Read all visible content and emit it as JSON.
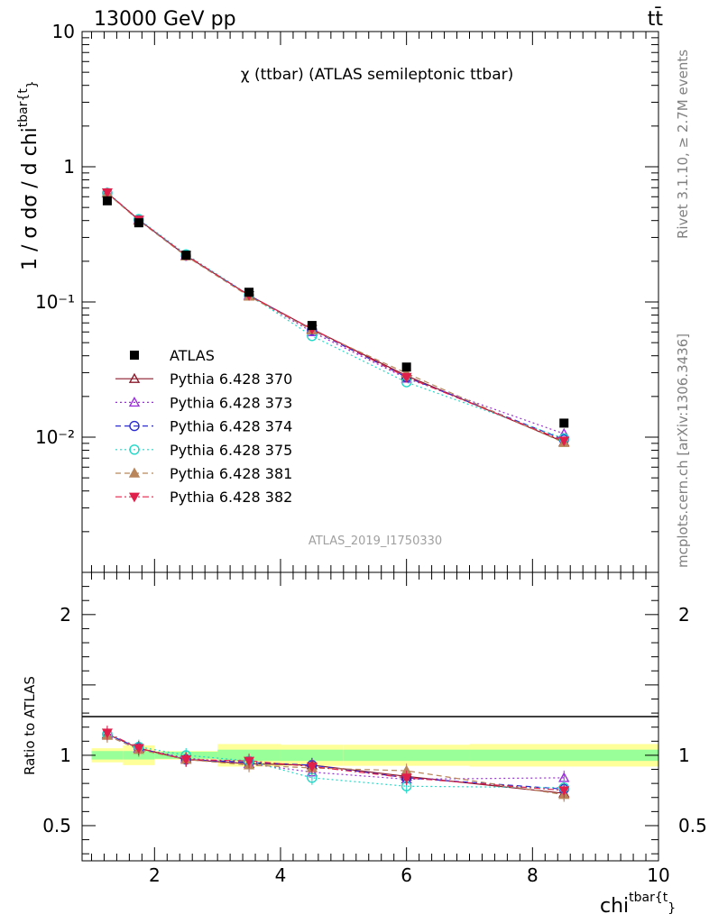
{
  "header": {
    "energy_label": "13000 GeV pp",
    "process_label": "tt̄"
  },
  "side_text": {
    "rivet": "Rivet 3.1.10, ≥ 2.7M events",
    "mcplots": "mcplots.cern.ch [arXiv:1306.3436]"
  },
  "chart_data": {
    "type": "line",
    "title": "χ (ttbar) (ATLAS semileptonic ttbar)",
    "analysis_label": "ATLAS_2019_I1750330",
    "xlabel": "chi",
    "xlabel_sup": "tbar{t",
    "xlabel_tail": "}",
    "ylabel": "1 / σ dσ / d chi",
    "ylabel_sup": "tbar{t",
    "ylabel_tail": "}",
    "ratio_ylabel": "Ratio to ATLAS",
    "xlim": [
      0.85,
      10.0
    ],
    "ylim": [
      0.001,
      10
    ],
    "yscale": "log",
    "ratio_ylim": [
      0.25,
      2.3
    ],
    "x_ticks": [
      2,
      4,
      6,
      8,
      10
    ],
    "x_tick_labels": [
      "2",
      "4",
      "6",
      "8",
      "10"
    ],
    "y_tick_labels": [
      "10",
      "1",
      "10⁻¹",
      "10⁻²"
    ],
    "ratio_tick_labels": [
      "2",
      "1",
      "0.5"
    ],
    "legend_position": "center-left",
    "bins": [
      [
        1.0,
        1.5
      ],
      [
        1.5,
        2.0
      ],
      [
        2.0,
        3.0
      ],
      [
        3.0,
        4.0
      ],
      [
        4.0,
        5.0
      ],
      [
        5.0,
        7.0
      ],
      [
        7.0,
        10.0
      ]
    ],
    "x": [
      1.25,
      1.75,
      2.5,
      3.5,
      4.5,
      6.0,
      8.5
    ],
    "data": {
      "name": "ATLAS",
      "values": [
        0.56,
        0.385,
        0.222,
        0.118,
        0.067,
        0.033,
        0.0127
      ],
      "band_stat": [
        0.03,
        0.03,
        0.025,
        0.04,
        0.04,
        0.04,
        0.04
      ],
      "band_total": [
        0.05,
        0.07,
        0.03,
        0.08,
        0.075,
        0.075,
        0.08
      ]
    },
    "series": [
      {
        "name": "Pythia 6.428 370",
        "color": "#8b1a2b",
        "dash": "",
        "marker": "triangle-open",
        "values": [
          0.64,
          0.405,
          0.22,
          0.112,
          0.063,
          0.0285,
          0.0092
        ],
        "ratio": [
          1.15,
          1.05,
          0.97,
          0.94,
          0.93,
          0.85,
          0.73
        ]
      },
      {
        "name": "Pythia 6.428 373",
        "color": "#9a30d8",
        "dash": "2,3",
        "marker": "triangle-open",
        "values": [
          0.64,
          0.405,
          0.222,
          0.112,
          0.06,
          0.0272,
          0.0106
        ],
        "ratio": [
          1.15,
          1.05,
          0.98,
          0.94,
          0.88,
          0.83,
          0.84
        ]
      },
      {
        "name": "Pythia 6.428 374",
        "color": "#2b2bd0",
        "dash": "6,4",
        "marker": "circle-open",
        "values": [
          0.64,
          0.405,
          0.22,
          0.112,
          0.062,
          0.0278,
          0.0096
        ],
        "ratio": [
          1.15,
          1.05,
          0.97,
          0.95,
          0.93,
          0.84,
          0.76
        ]
      },
      {
        "name": "Pythia 6.428 375",
        "color": "#20d8c8",
        "dash": "2,3",
        "marker": "circle-open",
        "values": [
          0.64,
          0.41,
          0.225,
          0.113,
          0.056,
          0.0255,
          0.0098
        ],
        "ratio": [
          1.15,
          1.06,
          1.0,
          0.96,
          0.84,
          0.78,
          0.77
        ]
      },
      {
        "name": "Pythia 6.428 381",
        "color": "#b8865a",
        "dash": "6,4",
        "marker": "triangle-filled",
        "values": [
          0.635,
          0.4,
          0.218,
          0.11,
          0.062,
          0.0297,
          0.0091
        ],
        "ratio": [
          1.14,
          1.04,
          0.97,
          0.93,
          0.91,
          0.89,
          0.72
        ]
      },
      {
        "name": "Pythia 6.428 382",
        "color": "#e0204a",
        "dash": "7,3,2,3",
        "marker": "triangle-down-filled",
        "values": [
          0.645,
          0.405,
          0.222,
          0.112,
          0.063,
          0.0278,
          0.0094
        ],
        "ratio": [
          1.16,
          1.05,
          0.97,
          0.96,
          0.92,
          0.84,
          0.75
        ]
      }
    ]
  }
}
